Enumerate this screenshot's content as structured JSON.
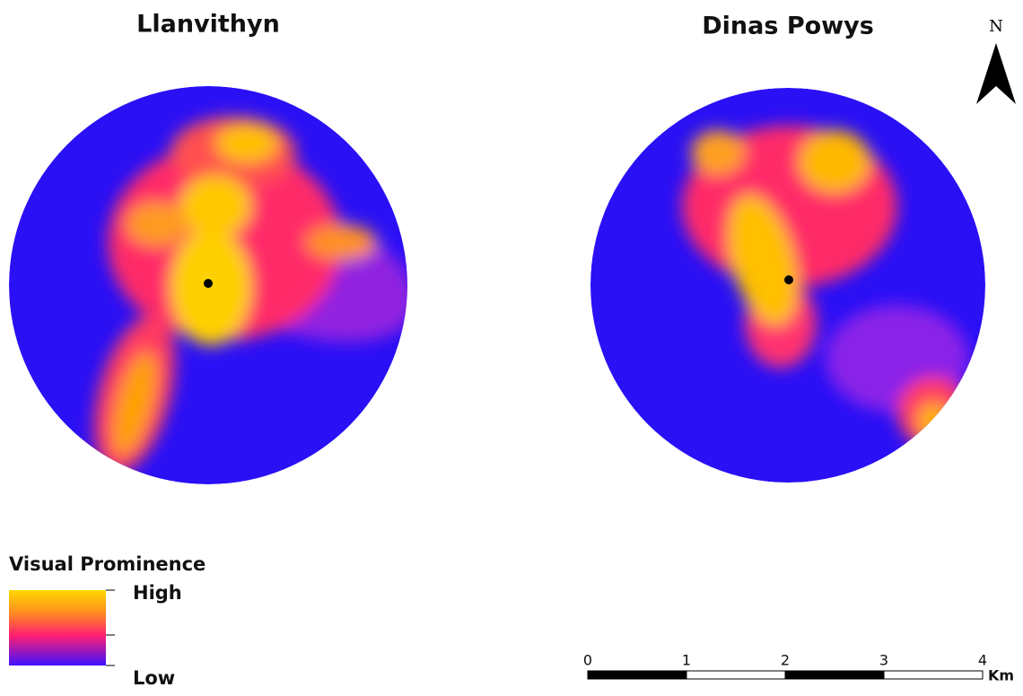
{
  "maps": [
    {
      "title": "Llanvithyn"
    },
    {
      "title": "Dinas Powys"
    }
  ],
  "north_arrow": {
    "label": "N"
  },
  "legend": {
    "title": "Visual Prominence",
    "high": "High",
    "low": "Low"
  },
  "scale_bar": {
    "labels": [
      "0",
      "1",
      "2",
      "3",
      "4"
    ],
    "unit": "Km"
  }
}
